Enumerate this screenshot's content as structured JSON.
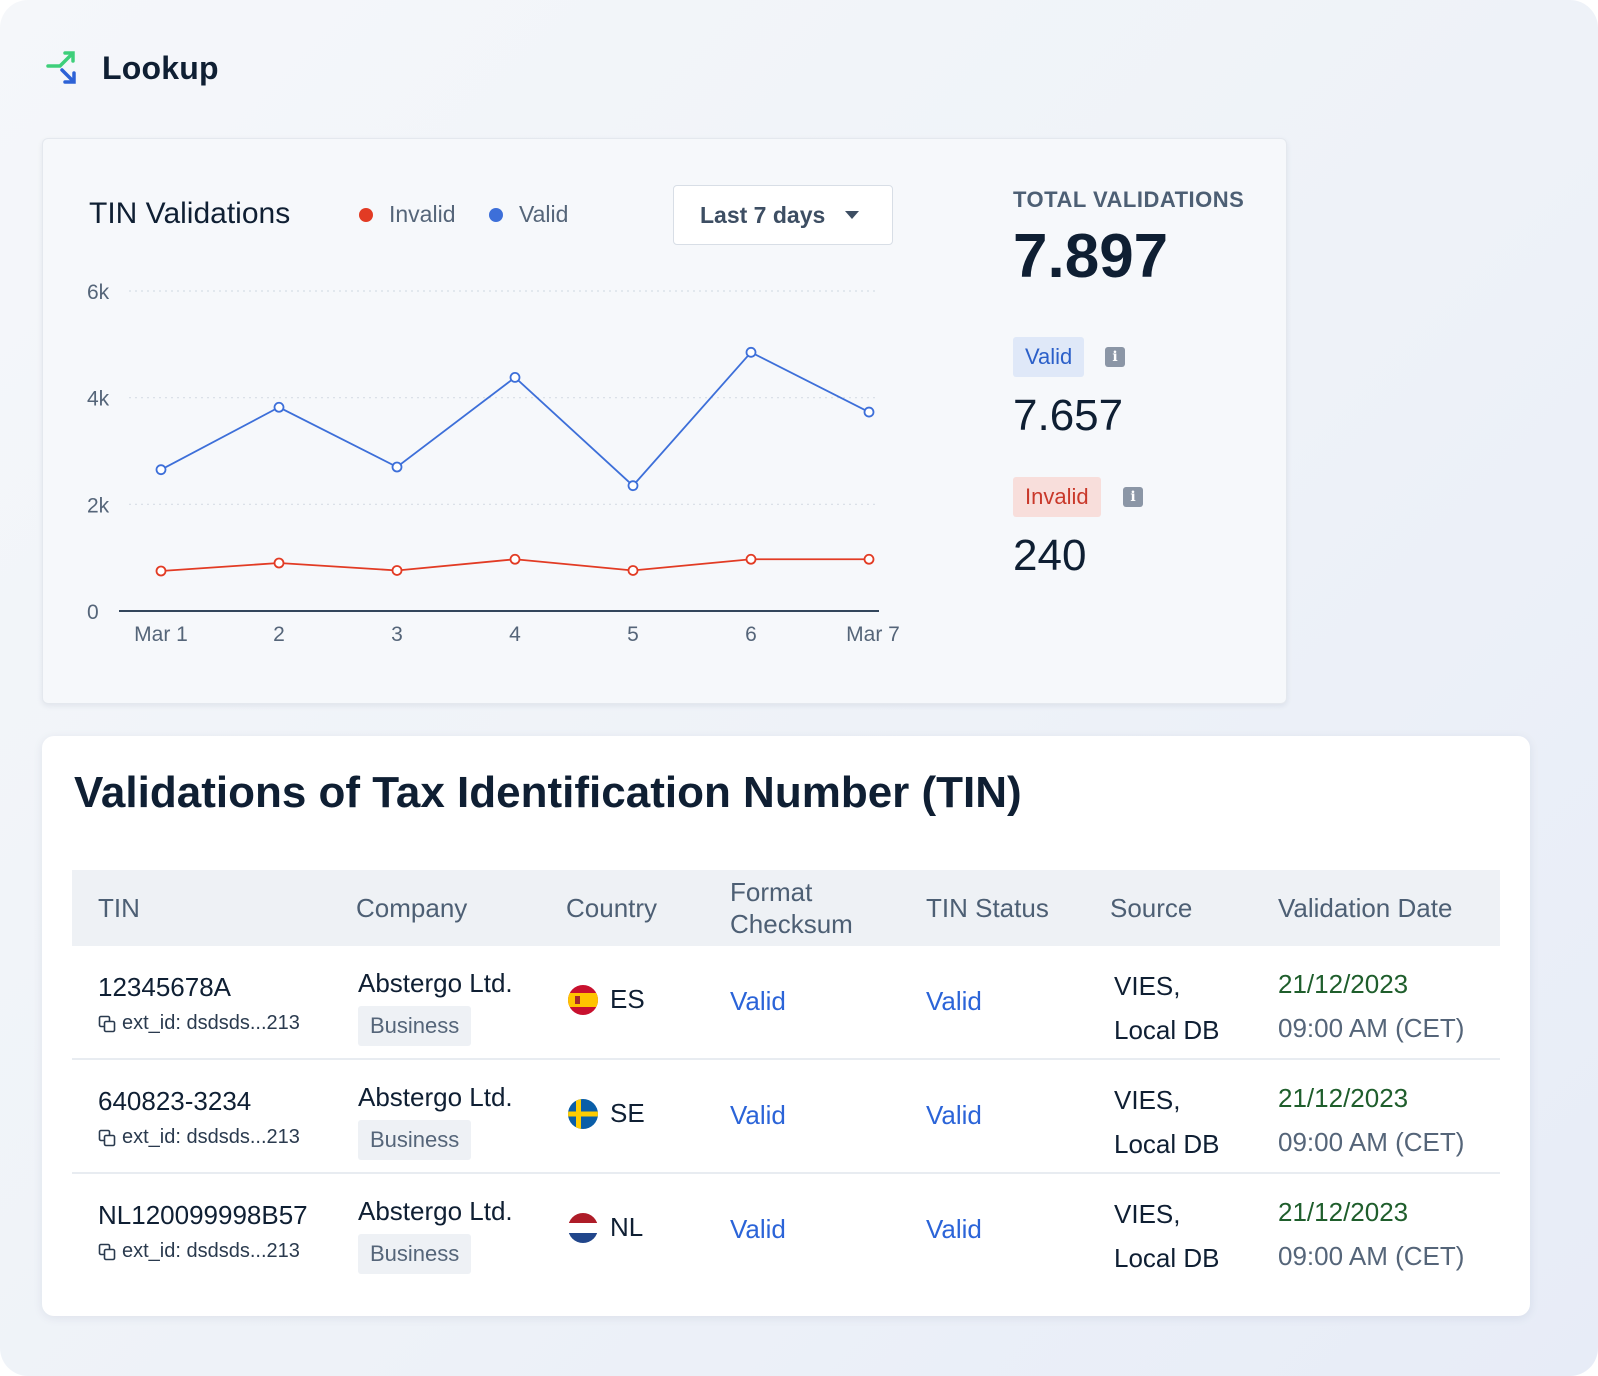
{
  "header": {
    "title": "Lookup",
    "icon": "swap-arrows-icon"
  },
  "chart_panel": {
    "title": "TIN Validations",
    "legend": [
      {
        "label": "Invalid",
        "color": "#e23b24"
      },
      {
        "label": "Valid",
        "color": "#3d6fd9"
      }
    ],
    "range_select": "Last 7 days",
    "total_label": "TOTAL VALIDATIONS",
    "total_value": "7.897",
    "valid_badge": "Valid",
    "valid_value": "7.657",
    "invalid_badge": "Invalid",
    "invalid_value": "240"
  },
  "chart_data": {
    "type": "line",
    "categories": [
      "Mar 1",
      "2",
      "3",
      "4",
      "5",
      "6",
      "Mar 7"
    ],
    "y_ticks": [
      "0",
      "2k",
      "4k",
      "6k"
    ],
    "ylim": [
      0,
      6000
    ],
    "grid": true,
    "series": [
      {
        "name": "Valid",
        "color": "#3d6fd9",
        "values": [
          2650,
          3820,
          2700,
          4380,
          2350,
          4850,
          3730
        ]
      },
      {
        "name": "Invalid",
        "color": "#e23b24",
        "values": [
          750,
          900,
          760,
          970,
          760,
          970,
          970
        ]
      }
    ]
  },
  "table": {
    "title": "Validations of Tax Identification Number (TIN)",
    "columns": [
      "TIN",
      "Company",
      "Country",
      "Format\nChecksum",
      "TIN Status",
      "Source",
      "Validation Date"
    ],
    "rows": [
      {
        "tin": "12345678A",
        "ext_id": "ext_id: dsdsds...213",
        "company": "Abstergo Ltd.",
        "type": "Business",
        "country": "ES",
        "flag": "spain-flag-icon",
        "format": "Valid",
        "status": "Valid",
        "source_1": "VIES,",
        "source_2": "Local DB",
        "date": "21/12/2023",
        "time": "09:00 AM (CET)"
      },
      {
        "tin": "640823-3234",
        "ext_id": "ext_id: dsdsds...213",
        "company": "Abstergo Ltd.",
        "type": "Business",
        "country": "SE",
        "flag": "sweden-flag-icon",
        "format": "Valid",
        "status": "Valid",
        "source_1": "VIES,",
        "source_2": "Local DB",
        "date": "21/12/2023",
        "time": "09:00 AM (CET)"
      },
      {
        "tin": "NL120099998B57",
        "ext_id": "ext_id: dsdsds...213",
        "company": "Abstergo Ltd.",
        "type": "Business",
        "country": "NL",
        "flag": "netherlands-flag-icon",
        "format": "Valid",
        "status": "Valid",
        "source_1": "VIES,",
        "source_2": "Local DB",
        "date": "21/12/2023",
        "time": "09:00 AM (CET)"
      }
    ]
  }
}
